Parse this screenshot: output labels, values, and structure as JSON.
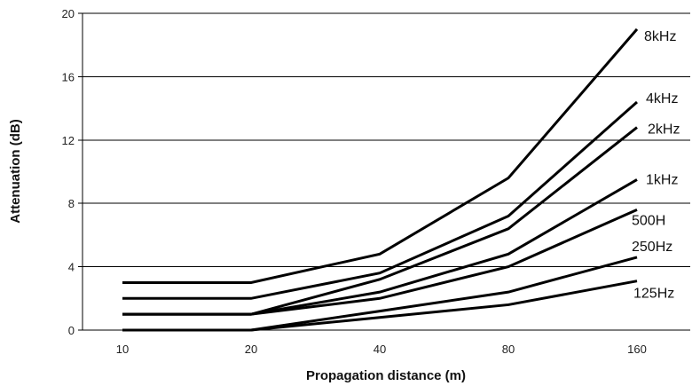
{
  "chart_data": {
    "type": "line",
    "title": "",
    "xlabel": "Propagation distance (m)",
    "ylabel": "Attenuation (dB)",
    "categories": [
      "10",
      "20",
      "40",
      "80",
      "160"
    ],
    "ylim": [
      0,
      20
    ],
    "yticks": [
      "0",
      "4",
      "8",
      "12",
      "16",
      "20"
    ],
    "grid": "horizontal",
    "series": [
      {
        "name": "8kHz",
        "values": [
          3,
          3,
          4.8,
          9.6,
          19.0
        ]
      },
      {
        "name": "4kHz",
        "values": [
          2,
          2,
          3.6,
          7.2,
          14.4
        ]
      },
      {
        "name": "2kHz",
        "values": [
          1,
          1,
          3.2,
          6.4,
          12.8
        ]
      },
      {
        "name": "1kHz",
        "values": [
          1,
          1,
          2.4,
          4.8,
          9.5
        ]
      },
      {
        "name": "500H",
        "values": [
          1,
          1,
          2.0,
          4.0,
          7.6
        ]
      },
      {
        "name": "250Hz",
        "values": [
          0,
          0,
          1.2,
          2.4,
          4.6
        ]
      },
      {
        "name": "125Hz",
        "values": [
          0,
          0,
          0.8,
          1.6,
          3.1
        ]
      }
    ]
  }
}
